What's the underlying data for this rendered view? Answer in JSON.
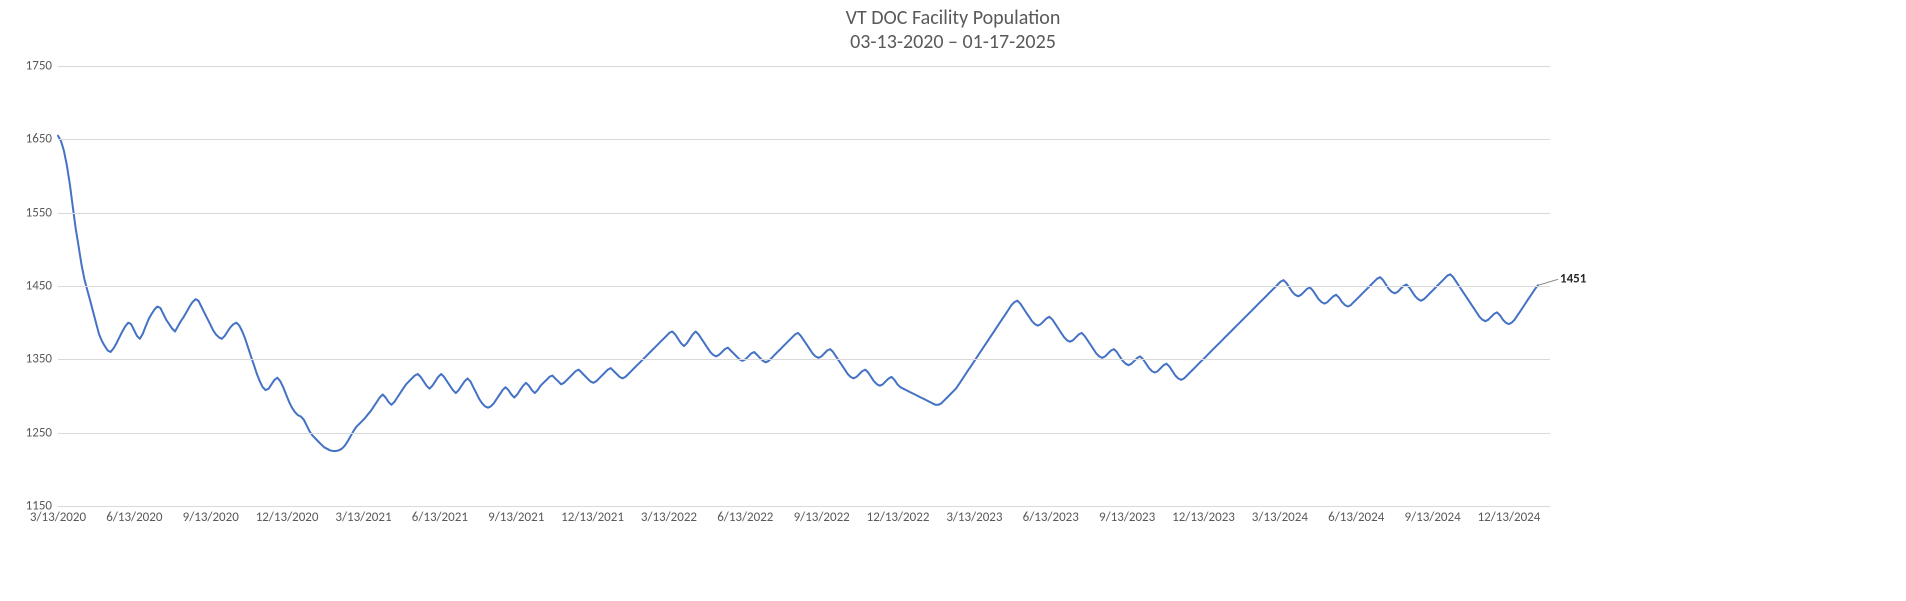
{
  "chart": {
    "type": "line",
    "title_line1": "VT DOC Facility Population",
    "title_line2": "03-13-2020 – 01-17-2025",
    "title_fontsize": 20,
    "title_color": "#595959",
    "background_color": "#ffffff",
    "plot_background_color": "#ffffff",
    "grid_color": "#d9d9d9",
    "axis_label_color": "#595959",
    "axis_label_fontsize": 13,
    "line_color": "#4472c4",
    "line_width": 2.0,
    "end_label_value": "1451",
    "end_label_color": "#262626",
    "end_label_fontsize": 13,
    "end_leader_color": "#808080",
    "y_axis": {
      "min": 1150,
      "max": 1750,
      "tick_step": 100,
      "ticks": [
        1150,
        1250,
        1350,
        1450,
        1550,
        1650,
        1750
      ]
    },
    "x_axis": {
      "tick_labels": [
        "3/13/2020",
        "6/13/2020",
        "9/13/2020",
        "12/13/2020",
        "3/13/2021",
        "6/13/2021",
        "9/13/2021",
        "12/13/2021",
        "3/13/2022",
        "6/13/2022",
        "9/13/2022",
        "12/13/2022",
        "3/13/2023",
        "6/13/2023",
        "9/13/2023",
        "12/13/2023",
        "3/13/2024",
        "6/13/2024",
        "9/13/2024",
        "12/13/2024"
      ],
      "tick_count": 20,
      "series_extends_past_last_tick_fraction": 0.38
    },
    "series": {
      "name": "Facility Population",
      "values": [
        1655,
        1648,
        1635,
        1615,
        1590,
        1560,
        1530,
        1505,
        1480,
        1460,
        1445,
        1430,
        1415,
        1400,
        1385,
        1375,
        1368,
        1362,
        1360,
        1365,
        1372,
        1380,
        1388,
        1395,
        1400,
        1398,
        1390,
        1382,
        1378,
        1385,
        1395,
        1405,
        1412,
        1418,
        1422,
        1420,
        1412,
        1404,
        1398,
        1392,
        1388,
        1395,
        1402,
        1408,
        1415,
        1422,
        1428,
        1432,
        1430,
        1422,
        1414,
        1406,
        1398,
        1390,
        1384,
        1380,
        1378,
        1382,
        1388,
        1394,
        1398,
        1400,
        1396,
        1388,
        1378,
        1366,
        1354,
        1342,
        1330,
        1320,
        1312,
        1308,
        1310,
        1316,
        1322,
        1325,
        1320,
        1312,
        1302,
        1292,
        1284,
        1278,
        1274,
        1272,
        1268,
        1260,
        1252,
        1246,
        1242,
        1238,
        1234,
        1230,
        1228,
        1226,
        1225,
        1225,
        1226,
        1228,
        1232,
        1238,
        1245,
        1252,
        1258,
        1262,
        1266,
        1270,
        1275,
        1280,
        1286,
        1292,
        1298,
        1302,
        1298,
        1292,
        1288,
        1292,
        1298,
        1304,
        1310,
        1316,
        1320,
        1324,
        1328,
        1330,
        1326,
        1320,
        1314,
        1310,
        1314,
        1320,
        1326,
        1330,
        1326,
        1320,
        1314,
        1308,
        1304,
        1308,
        1314,
        1320,
        1324,
        1320,
        1312,
        1304,
        1296,
        1290,
        1286,
        1284,
        1286,
        1290,
        1296,
        1302,
        1308,
        1312,
        1308,
        1302,
        1298,
        1302,
        1308,
        1314,
        1318,
        1314,
        1308,
        1304,
        1308,
        1314,
        1318,
        1322,
        1326,
        1328,
        1324,
        1320,
        1316,
        1318,
        1322,
        1326,
        1330,
        1334,
        1336,
        1332,
        1328,
        1324,
        1320,
        1318,
        1320,
        1324,
        1328,
        1332,
        1336,
        1338,
        1334,
        1330,
        1326,
        1324,
        1326,
        1330,
        1334,
        1338,
        1342,
        1346,
        1350,
        1354,
        1358,
        1362,
        1366,
        1370,
        1374,
        1378,
        1382,
        1386,
        1388,
        1384,
        1378,
        1372,
        1368,
        1372,
        1378,
        1384,
        1388,
        1384,
        1378,
        1372,
        1366,
        1360,
        1356,
        1354,
        1356,
        1360,
        1364,
        1366,
        1362,
        1358,
        1354,
        1350,
        1348,
        1350,
        1354,
        1358,
        1360,
        1356,
        1352,
        1348,
        1346,
        1348,
        1352,
        1356,
        1360,
        1364,
        1368,
        1372,
        1376,
        1380,
        1384,
        1386,
        1382,
        1376,
        1370,
        1364,
        1358,
        1354,
        1352,
        1354,
        1358,
        1362,
        1364,
        1360,
        1354,
        1348,
        1342,
        1336,
        1330,
        1326,
        1324,
        1326,
        1330,
        1334,
        1336,
        1332,
        1326,
        1320,
        1316,
        1314,
        1316,
        1320,
        1324,
        1326,
        1322,
        1316,
        1312,
        1310,
        1308,
        1306,
        1304,
        1302,
        1300,
        1298,
        1296,
        1294,
        1292,
        1290,
        1288,
        1288,
        1290,
        1294,
        1298,
        1302,
        1306,
        1310,
        1316,
        1322,
        1328,
        1334,
        1340,
        1346,
        1352,
        1358,
        1364,
        1370,
        1376,
        1382,
        1388,
        1394,
        1400,
        1406,
        1412,
        1418,
        1424,
        1428,
        1430,
        1426,
        1420,
        1414,
        1408,
        1402,
        1398,
        1396,
        1398,
        1402,
        1406,
        1408,
        1404,
        1398,
        1392,
        1386,
        1380,
        1376,
        1374,
        1376,
        1380,
        1384,
        1386,
        1382,
        1376,
        1370,
        1364,
        1358,
        1354,
        1352,
        1354,
        1358,
        1362,
        1364,
        1360,
        1354,
        1348,
        1344,
        1342,
        1344,
        1348,
        1352,
        1354,
        1350,
        1344,
        1338,
        1334,
        1332,
        1334,
        1338,
        1342,
        1344,
        1340,
        1334,
        1328,
        1324,
        1322,
        1324,
        1328,
        1332,
        1336,
        1340,
        1344,
        1348,
        1352,
        1356,
        1360,
        1364,
        1368,
        1372,
        1376,
        1380,
        1384,
        1388,
        1392,
        1396,
        1400,
        1404,
        1408,
        1412,
        1416,
        1420,
        1424,
        1428,
        1432,
        1436,
        1440,
        1444,
        1448,
        1452,
        1456,
        1458,
        1454,
        1448,
        1442,
        1438,
        1436,
        1438,
        1442,
        1446,
        1448,
        1444,
        1438,
        1432,
        1428,
        1426,
        1428,
        1432,
        1436,
        1438,
        1434,
        1428,
        1424,
        1422,
        1424,
        1428,
        1432,
        1436,
        1440,
        1444,
        1448,
        1452,
        1456,
        1460,
        1462,
        1458,
        1452,
        1446,
        1442,
        1440,
        1442,
        1446,
        1450,
        1452,
        1448,
        1442,
        1436,
        1432,
        1430,
        1432,
        1436,
        1440,
        1444,
        1448,
        1452,
        1456,
        1460,
        1464,
        1466,
        1462,
        1456,
        1450,
        1444,
        1438,
        1432,
        1426,
        1420,
        1414,
        1408,
        1404,
        1402,
        1404,
        1408,
        1412,
        1414,
        1410,
        1404,
        1400,
        1398,
        1400,
        1404,
        1410,
        1416,
        1422,
        1428,
        1434,
        1440,
        1446,
        1451
      ]
    }
  }
}
